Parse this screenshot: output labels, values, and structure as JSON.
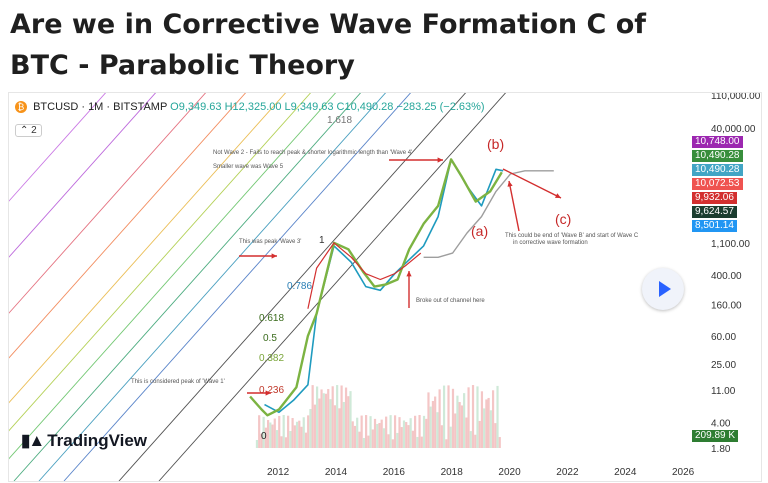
{
  "headline": "Are we in Corrective Wave Formation C of BTC - Parabolic Theory",
  "symbol_bar": {
    "symbol": "BTCUSD · 1M · BITSTAMP",
    "ohlc": "O9,349.63 H12,325.00 L9,349.63 C10,490.28",
    "change": "−283.25 (−2.63%)",
    "control": "2"
  },
  "branding": {
    "logo_text": "TradingView",
    "logo_mark": "17"
  },
  "price_badges": [
    {
      "label": "10,748.00",
      "color": "#9c27b0"
    },
    {
      "label": "10,490.28",
      "color": "#388e3c"
    },
    {
      "label": "10,490.28",
      "color": "#42a5c5"
    },
    {
      "label": "10,072.53",
      "color": "#ef5350"
    },
    {
      "label": "9,932.06",
      "color": "#d32f2f"
    },
    {
      "label": "9,624.57",
      "color": "#1b3d2f"
    },
    {
      "label": "8,501.14",
      "color": "#2196f3"
    },
    {
      "label": "209.89 K",
      "color": "#2e7d32"
    }
  ],
  "chart_data": {
    "type": "line",
    "symbol": "BTCUSD",
    "interval": "1M",
    "exchange": "BITSTAMP",
    "scale": "log",
    "x_ticks": [
      "2012",
      "2014",
      "2016",
      "2018",
      "2020",
      "2022",
      "2024",
      "2026"
    ],
    "y_ticks": [
      "110,000.00",
      "40,000.00",
      "1,100.00",
      "400.00",
      "160.00",
      "60.00",
      "25.00",
      "11.00",
      "4.00",
      "1.80"
    ],
    "fib_levels": [
      "1.618",
      "1",
      "0.786",
      "0.618",
      "0.5",
      "0.382",
      "0.236",
      "0"
    ],
    "series": [
      {
        "values_x": [
          2011.5,
          2012.0,
          2012.5,
          2013.0,
          2013.3,
          2013.9,
          2014.5,
          2015.0,
          2015.5,
          2016.0,
          2016.5,
          2017.0,
          2017.5,
          2017.95,
          2018.5,
          2019.0,
          2019.5,
          2019.75
        ],
        "values_y": [
          7,
          5.5,
          8,
          13,
          120,
          1000,
          600,
          280,
          250,
          420,
          650,
          1000,
          2500,
          15000,
          6500,
          3500,
          11000,
          10490
        ]
      },
      {
        "values_x": [
          2011.0,
          2011.4,
          2011.6,
          2012.0,
          2012.6,
          2013.0,
          2013.3,
          2013.9,
          2014.4,
          2014.9,
          2015.3,
          2015.7,
          2016.1,
          2016.5,
          2017.0,
          2017.5,
          2017.95,
          2018.3,
          2018.8,
          2019.3,
          2019.7
        ],
        "values_y": [
          9,
          6,
          5,
          6,
          12,
          60,
          120,
          1100,
          900,
          450,
          280,
          300,
          350,
          900,
          2000,
          3500,
          15000,
          9000,
          4000,
          5500,
          10000
        ]
      },
      {
        "values_x": [
          2013.0,
          2013.3,
          2013.9,
          2014.5,
          2015.0,
          2015.5,
          2016.0,
          2016.4,
          2016.9
        ],
        "values_y": [
          140,
          500,
          1100,
          700,
          420,
          350,
          420,
          550,
          800
        ]
      },
      {
        "values_x": [
          2017.0,
          2017.5,
          2018.0,
          2018.5,
          2019.0,
          2019.5,
          2020.0,
          2020.5,
          2021.0,
          2021.5
        ],
        "values_y": [
          700,
          700,
          800,
          1500,
          2500,
          5500,
          9500,
          10500,
          10500,
          10500
        ]
      }
    ],
    "annotations": [
      "(b)",
      "(a)",
      "(c)",
      "Not Wave 2 - Fails to reach peak & shorter logarithmic length than 'Wave 4'",
      "Smaller wave was Wave 5",
      "This was peak 'Wave 3'",
      "This could be end of 'Wave B' and start of Wave C in corrective wave formation",
      "Broke out of channel here",
      "This is considered peak of 'Wave 1'"
    ]
  }
}
